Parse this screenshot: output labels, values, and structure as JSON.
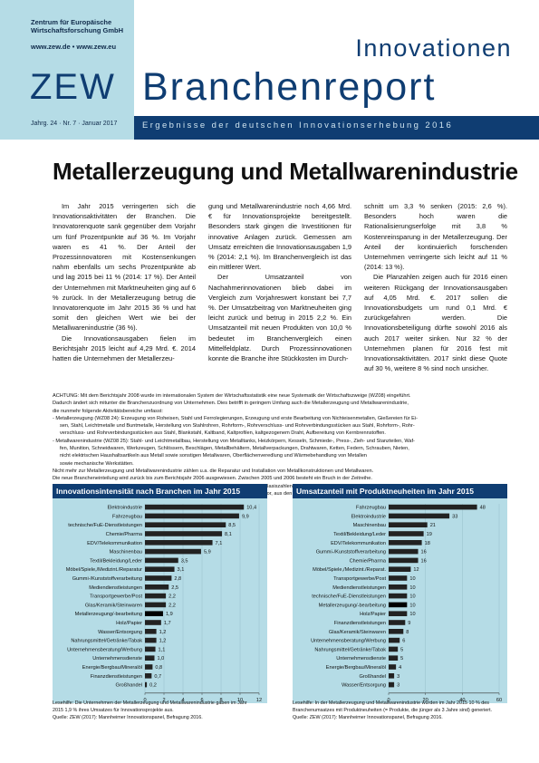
{
  "header": {
    "org_line1": "Zentrum für Europäische",
    "org_line2": "Wirtschaftsforschung GmbH",
    "urls": "www.zew.de • www.zew.eu",
    "logo": "ZEW",
    "title_line1": "Innovationen",
    "title_line2": "Branchenreport",
    "issue": "Jahrg. 24 · Nr. 7 · Januar 2017",
    "subtitle": "Ergebnisse der deutschen Innovationserhebung 2016"
  },
  "article": {
    "title": "Metallerzeugung und Metallwarenindustrie",
    "col1": [
      "Im Jahr 2015 verringerten sich die Innovationsaktivitäten der Branchen. Die Innovatorenquote sank gegenüber dem Vorjahr um fünf Prozentpunkte auf 36 %. Im Vorjahr waren es 41 %. Der Anteil der Prozessinnovatoren mit Kostensenkungen nahm ebenfalls um sechs Prozentpunkte ab und lag 2015 bei 11 % (2014: 17 %). Der Anteil der Unternehmen mit Marktneuheiten ging auf 6 % zurück. In der Metallerzeugung betrug die Innovatorenquote im Jahr 2015 36 % und hat somit den gleichen Wert wie bei der Metallwarenindustrie (36 %).",
      "Die Innovationsausgaben fielen im Berichtsjahr 2015 leicht auf 4,29 Mrd. €. 2014 hatten die Unternehmen der Metallerzeu-"
    ],
    "col2": [
      "gung und Metallwarenindustrie noch 4,66 Mrd. € für Innovationsprojekte bereitgestellt. Besonders stark gingen die Investitionen für innovative Anlagen zurück. Gemessen am Umsatz erreichten die Innovationsausgaben 1,9 % (2014: 2,1 %). Im Branchenvergleich ist das ein mittlerer Wert.",
      "Der Umsatzanteil von Nachahmerinnovationen blieb dabei im Vergleich zum Vorjahreswert konstant bei 7,7 %. Der Umsatzbeitrag von Marktneuheiten ging leicht zurück und betrug in 2015 2,2 %. Ein Umsatzanteil mit neuen Produkten von 10,0 % bedeutet im Branchenvergleich einen Mittelfeldplatz. Durch Prozessinnovationen konnte die Branche ihre Stückkosten im Durch-"
    ],
    "col3": [
      "schnitt um 3,3 % senken (2015: 2,6 %). Besonders hoch waren die Rationalisierungserfolge mit 3,8 % Kostenreinsparung in der Metallerzeugung. Der Anteil der kontinuierlich forschenden Unternehmen verringerte sich leicht auf 11 % (2014: 13 %).",
      "Die Planzahlen zeigen auch für 2016 einen weiteren Rückgang der Innovationsausgaben auf 4,05 Mrd. €. 2017 sollen die Innovationsbudgets um rund 0,1 Mrd. € zurückgefahren werden. Die Innovationsbeteiligung dürfte sowohl 2016 als auch 2017 weiter sinken. Nur 32 % der Unternehmen planen für 2016 fest mit Innovationsaktivitäten. 2017 sinkt diese Quote auf 30 %, weitere 8 % sind noch unsicher."
    ]
  },
  "note": {
    "l1": "ACHTUNG: Mit dem Berichtsjahr 2008 wurde im internationalen System der Wirtschaftsstatistik eine neue Systematik der Wirtschaftszweige (WZ08) eingeführt.",
    "l2": "Dadurch ändert sich mitunter die Branchenzuordnung von Unternehmen. Dies betrifft in geringem Umfang auch die Metallerzeugung und Metallwarenindustrie,",
    "l3": "die nunmehr folgende Aktivitätsbereiche umfasst:",
    "l4": "- Metallerzeugung (WZ08 24): Erzeugung von Roheisen, Stahl und Ferrolegierungen, Erzeugung und erste Bearbeitung von Nichteisenmetallen, Gießereien für Ei-",
    "l5": "sen, Stahl, Leichtmetalle und Buntmetalle, Herstellung von Stahlrohren, Rohrform-, Rohrverschluss- und Rohrverbindungsstücken aus Stahl, Rohrform-, Rohr-",
    "l6": "verschluss- und Rohrverbindungsstücken aus Stahl, Blankstahl, Kaltband, Kaltprofilen, kaltgezogenem Draht, Aufbereitung von Kernbrennstoffen.",
    "l7": "- Metallwarenindustrie (WZ08 25): Stahl- und Leichtmetallbau, Herstellung von Metalltanks, Heizkörpern, Kesseln, Schmiede-, Press-, Zieh- und Stanzteilen, Waf-",
    "l8": "fen, Munition, Schneidwaren, Werkzeugen, Schlössern, Beschlägen, Metallbehältern, Metallverpackungen, Drahtwaren, Ketten, Federn, Schrauben, Nieten,",
    "l9": "nicht elektrischen Haushaltsartikeln aus Metall sowie sonstigen Metallwaren, Oberflächenveredlung und Wärmebehandlung von Metallen",
    "l10": "sowie mechanische Werkstätten.",
    "l11": "Nicht mehr zur Metallerzeugung und Metallwarenindustrie zählen u.a. die Reparatur und Installation von Metallkonstruktionen und Metallwaren.",
    "l12": "Die neue Brancheneinteilung wird zurück bis zum Berichtsjahr 2006 ausgewiesen. Zwischen 2005 und 2006 besteht ein Bruch in der Zeitreihe.",
    "l13": "Der Bruch in der Zeitreihe wird außerdem dadurch verstärkt, dass gleichzeitig die statistischen Basiszahlen (Anzahl der Unternehmen und Beschäftigten, Umsatz)",
    "l14": "ab 2006 aus dem Unternehmensregister des Statistischen Bundesamts und nicht mehr, wie zuvor, aus den Fachstatistiken stammen."
  },
  "chart_data": [
    {
      "type": "bar",
      "orientation": "horizontal",
      "title": "Innovationsintensität nach Branchen im Jahr 2015",
      "xlabel": "Innovationsausgaben in % des Umsatzes",
      "xlim": [
        0,
        12
      ],
      "xticks": [
        0,
        2,
        4,
        6,
        8,
        10,
        12
      ],
      "categories": [
        "Elektroindustrie",
        "Fahrzeugbau",
        "technische/FuE-Dienstleistungen",
        "Chemie/Pharma",
        "EDV/Telekommunikation",
        "Maschinenbau",
        "Textil/Bekleidung/Leder",
        "Möbel/Spiele,/Medizint./Reparatur",
        "Gummi-/Kunststoffverarbeitung",
        "Mediendienstleistungen",
        "Transportgewerbe/Post",
        "Glas/Keramik/Steinwaren",
        "Metallerzeugung/-bearbeitung",
        "Holz/Papier",
        "Wasser/Entsorgung",
        "Nahrungsmittel/Getränke/Tabak",
        "Unternehmensberatung/Werbung",
        "Unternehmensdienste",
        "Energie/Bergbau/Mineralöl",
        "Finanzdienstleistungen",
        "Großhandel"
      ],
      "values": [
        10.4,
        9.9,
        8.5,
        8.1,
        7.1,
        5.9,
        3.5,
        3.1,
        2.8,
        2.5,
        2.2,
        2.2,
        1.9,
        1.7,
        1.2,
        1.2,
        1.1,
        1.0,
        0.8,
        0.7,
        0.2
      ],
      "value_labels": [
        "10,4",
        "9,9",
        "8,5",
        "8,1",
        "7,1",
        "5,9",
        "3,5",
        "3,1",
        "2,8",
        "2,5",
        "2,2",
        "2,2",
        "1,9",
        "1,7",
        "1,2",
        "1,2",
        "1,1",
        "1,0",
        "0,8",
        "0,7",
        "0,2"
      ],
      "highlight": "Metallerzeugung/-bearbeitung",
      "footnote1": "Lesehilfe: Die Unternehmen der Metallerzeugung und Metallwarenindustrie gaben im Jahr",
      "footnote2": "2015 1,9 % ihres Umsatzes für Innovationsprojekte aus.",
      "source": "Quelle: ZEW (2017): Mannheimer Innovationspanel, Befragung 2016."
    },
    {
      "type": "bar",
      "orientation": "horizontal",
      "title": "Umsatzanteil mit Produktneuheiten im Jahr 2015",
      "xlabel": "Umsatzanteil mit Produktneuheiten in %",
      "xlim": [
        0,
        60
      ],
      "xticks": [
        0,
        20,
        40,
        60
      ],
      "categories": [
        "Fahrzeugbau",
        "Elektroindustrie",
        "Maschinenbau",
        "Textil/Bekleidung/Leder",
        "EDV/Telekommunikation",
        "Gummi-/Kunststoffverarbeitung",
        "Chemie/Pharma",
        "Möbel/Spiele,/Medizint./Reparat.",
        "Transportgewerbe/Post",
        "Mediendienstleistungen",
        "technische/FuE-Dienstleistungen",
        "Metallerzeugung/-bearbeitung",
        "Holz/Papier",
        "Finanzdienstleistungen",
        "Glas/Keramik/Steinwaren",
        "Unternehmensberatung/Werbung",
        "Nahrungsmittel/Getränke/Tabak",
        "Unternehmensdienste",
        "Energie/Bergbau/Mineralöl",
        "Großhandel",
        "Wasser/Entsorgung"
      ],
      "values": [
        48,
        33,
        21,
        19,
        18,
        16,
        16,
        12,
        10,
        10,
        10,
        10,
        10,
        9,
        8,
        6,
        5,
        5,
        4,
        3,
        3
      ],
      "value_labels": [
        "48",
        "33",
        "21",
        "19",
        "18",
        "16",
        "16",
        "12",
        "10",
        "10",
        "10",
        "10",
        "10",
        "9",
        "8",
        "6",
        "5",
        "5",
        "4",
        "3",
        "3"
      ],
      "highlight": "Metallerzeugung/-bearbeitung",
      "footnote1": "Lesehilfe: In der Metallerzeugung und Metallwarenindustrie wurden im Jahr 2015 10 % des",
      "footnote2": "Branchenumsatzes mit Produktneuheiten (= Produkte, die jünger als 3 Jahre sind) generiert.",
      "source": "Quelle: ZEW (2017): Mannheimer Innovationspanel, Befragung 2016."
    }
  ],
  "colors": {
    "navy": "#0f3d72",
    "light_blue": "#b5dce6",
    "bar": "#222222",
    "highlight_bar": "#000000"
  }
}
